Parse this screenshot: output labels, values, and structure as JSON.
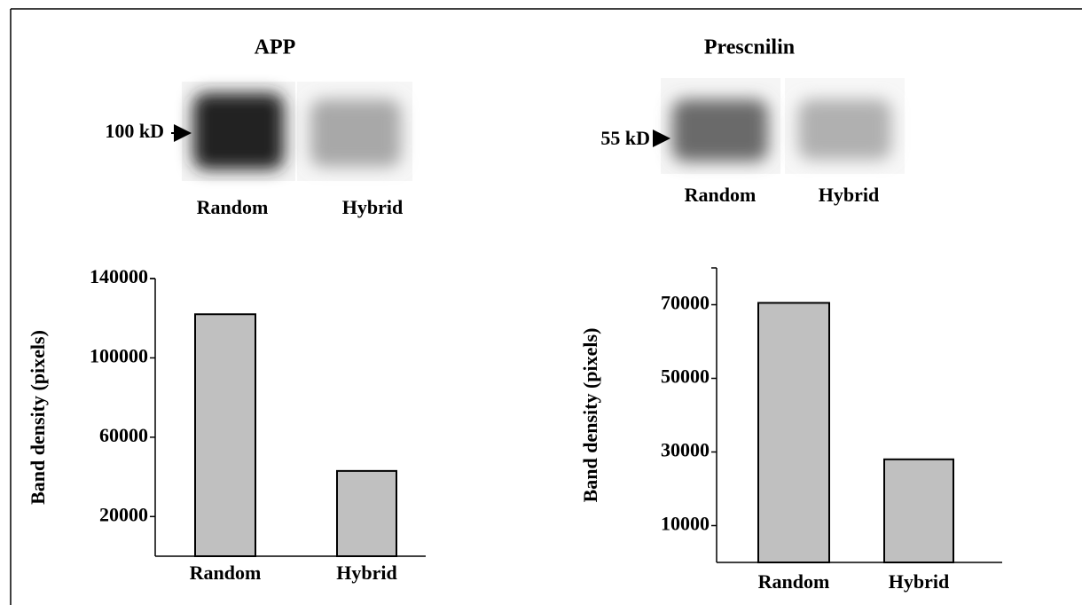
{
  "chart_data": [
    {
      "type": "bar",
      "title": "APP",
      "marker": "100 kD",
      "blot_lanes": [
        "Random",
        "Hybrid"
      ],
      "y_label": "Band density (pixels)",
      "categories": [
        "Random",
        "Hybrid"
      ],
      "values": [
        122000,
        43000
      ],
      "color": "#c0c0c0",
      "ylim": [
        0,
        140000
      ],
      "yticks": [
        20000,
        60000,
        100000,
        140000
      ]
    },
    {
      "type": "bar",
      "title": "Prescnilin",
      "marker": "55 kD",
      "blot_lanes": [
        "Random",
        "Hybrid"
      ],
      "y_label": "Band density (pixels)",
      "categories": [
        "Random",
        "Hybrid"
      ],
      "values": [
        70500,
        28000
      ],
      "color": "#c0c0c0",
      "ylim": [
        0,
        80000
      ],
      "yticks": [
        10000,
        30000,
        50000,
        70000
      ]
    }
  ]
}
